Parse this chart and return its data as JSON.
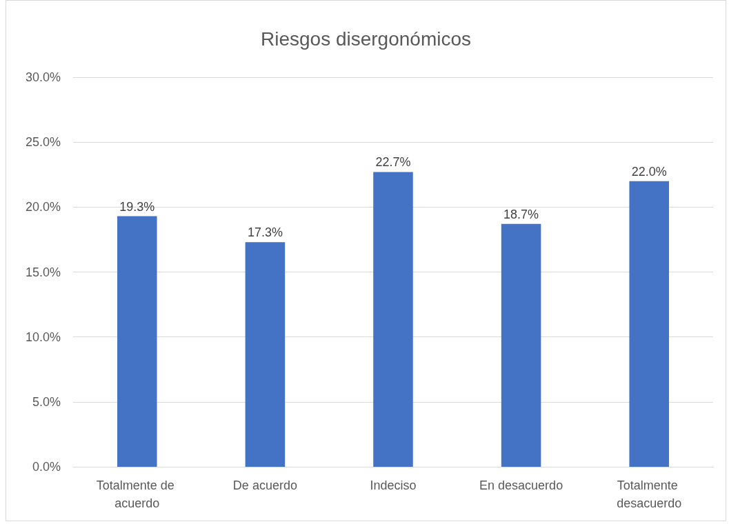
{
  "chart_data": {
    "type": "bar",
    "title": "Riesgos disergonómicos",
    "categories": [
      "Totalmente de acuerdo",
      "De acuerdo",
      "Indeciso",
      "En desacuerdo",
      "Totalmente desacuerdo"
    ],
    "values": [
      19.3,
      17.3,
      22.7,
      18.7,
      22.0
    ],
    "value_labels": [
      "19.3%",
      "17.3%",
      "22.7%",
      "18.7%",
      "22.0%"
    ],
    "color": "#4472c4",
    "ylim": [
      0,
      30
    ],
    "yticks": [
      {
        "value": 0,
        "label": "0.0%"
      },
      {
        "value": 5,
        "label": "5.0%"
      },
      {
        "value": 10,
        "label": "10.0%"
      },
      {
        "value": 15,
        "label": "15.0%"
      },
      {
        "value": 20,
        "label": "20.0%"
      },
      {
        "value": 25,
        "label": "25.0%"
      },
      {
        "value": 30,
        "label": "30.0%"
      }
    ],
    "grid": "y"
  }
}
